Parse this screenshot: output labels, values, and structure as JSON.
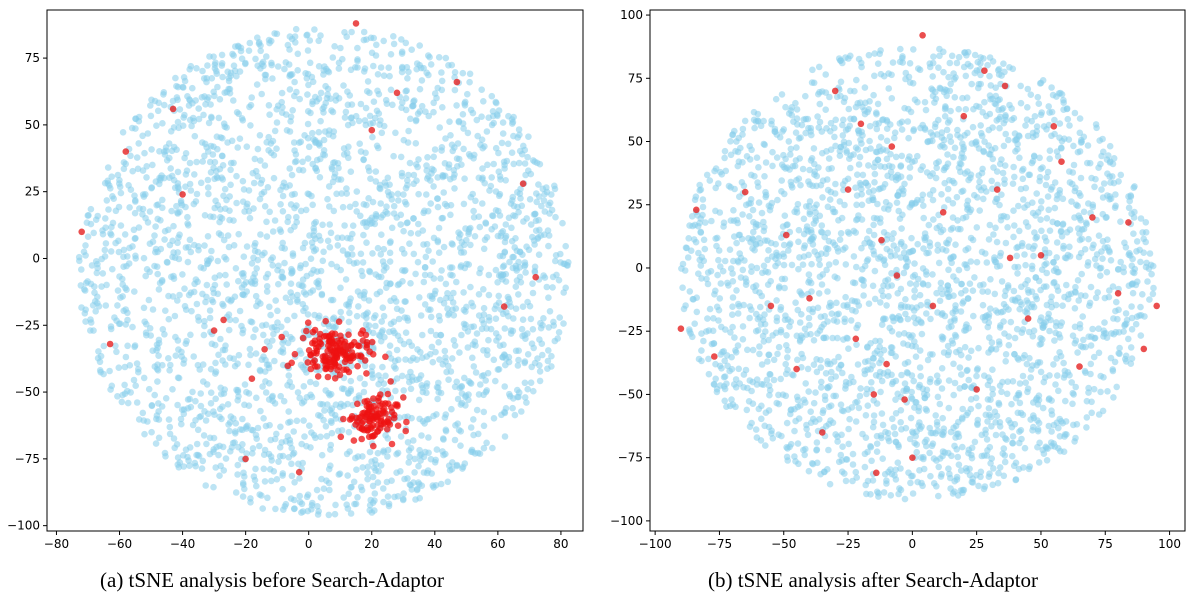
{
  "chart_data": [
    {
      "type": "scatter",
      "caption": "(a) tSNE analysis before Search-Adaptor",
      "xlim": [
        -83,
        87
      ],
      "ylim": [
        -102,
        93
      ],
      "xticks": [
        -80,
        -60,
        -40,
        -20,
        0,
        20,
        40,
        60,
        80
      ],
      "yticks": [
        -100,
        -75,
        -50,
        -25,
        0,
        25,
        50,
        75
      ],
      "xtick_labels": [
        "−80",
        "−60",
        "−40",
        "−20",
        "0",
        "20",
        "40",
        "60",
        "80"
      ],
      "ytick_labels": [
        "−100",
        "−75",
        "−50",
        "−25",
        "0",
        "25",
        "50",
        "75"
      ],
      "background_cloud": {
        "center": [
          5,
          -5
        ],
        "rx": 78,
        "ry": 92
      },
      "clusters": [
        {
          "center": [
            8,
            -35
          ],
          "rx": 10,
          "ry": 8
        },
        {
          "center": [
            20,
            -60
          ],
          "rx": 7,
          "ry": 8
        }
      ],
      "red_points": [
        [
          -43,
          56
        ],
        [
          -58,
          40
        ],
        [
          -72,
          10
        ],
        [
          -63,
          -32
        ],
        [
          -14,
          -34
        ],
        [
          -18,
          -45
        ],
        [
          -20,
          -75
        ],
        [
          -30,
          -27
        ],
        [
          -27,
          -23
        ],
        [
          12,
          -33
        ],
        [
          30,
          -52
        ],
        [
          26,
          -46
        ],
        [
          15,
          88
        ],
        [
          47,
          66
        ],
        [
          28,
          62
        ],
        [
          20,
          48
        ],
        [
          72,
          -7
        ],
        [
          68,
          28
        ],
        [
          -40,
          24
        ],
        [
          62,
          -18
        ],
        [
          -3,
          -80
        ]
      ],
      "grid": false
    },
    {
      "type": "scatter",
      "caption": "(b) tSNE analysis after Search-Adaptor",
      "xlim": [
        -102,
        106
      ],
      "ylim": [
        -104,
        102
      ],
      "xticks": [
        -100,
        -75,
        -50,
        -25,
        0,
        25,
        50,
        75,
        100
      ],
      "yticks": [
        -100,
        -75,
        -50,
        -25,
        0,
        25,
        50,
        75,
        100
      ],
      "xtick_labels": [
        "−100",
        "−75",
        "−50",
        "−25",
        "0",
        "25",
        "50",
        "75",
        "100"
      ],
      "ytick_labels": [
        "−100",
        "−75",
        "−50",
        "−25",
        "0",
        "25",
        "50",
        "75",
        "100"
      ],
      "background_cloud": {
        "center": [
          2,
          -2
        ],
        "rx": 92,
        "ry": 90
      },
      "red_points": [
        [
          38,
          4
        ],
        [
          36,
          72
        ],
        [
          -12,
          11
        ],
        [
          -14,
          -81
        ],
        [
          -22,
          -28
        ],
        [
          -30,
          70
        ],
        [
          8,
          -15
        ],
        [
          -3,
          -52
        ],
        [
          -10,
          -38
        ],
        [
          55,
          56
        ],
        [
          65,
          -39
        ],
        [
          -77,
          -35
        ],
        [
          -49,
          13
        ],
        [
          -6,
          -3
        ],
        [
          33,
          31
        ],
        [
          90,
          -32
        ],
        [
          50,
          5
        ],
        [
          -20,
          57
        ],
        [
          12,
          22
        ],
        [
          -84,
          23
        ],
        [
          -25,
          31
        ],
        [
          80,
          -10
        ],
        [
          -55,
          -15
        ],
        [
          4,
          92
        ],
        [
          58,
          42
        ],
        [
          -40,
          -12
        ],
        [
          25,
          -48
        ],
        [
          45,
          -20
        ],
        [
          -65,
          30
        ],
        [
          -8,
          48
        ],
        [
          70,
          20
        ],
        [
          -35,
          -65
        ],
        [
          20,
          60
        ],
        [
          -15,
          -50
        ],
        [
          84,
          18
        ],
        [
          -90,
          -24
        ],
        [
          95,
          -15
        ],
        [
          28,
          78
        ],
        [
          -45,
          -40
        ],
        [
          0,
          -75
        ]
      ],
      "grid": false
    }
  ]
}
